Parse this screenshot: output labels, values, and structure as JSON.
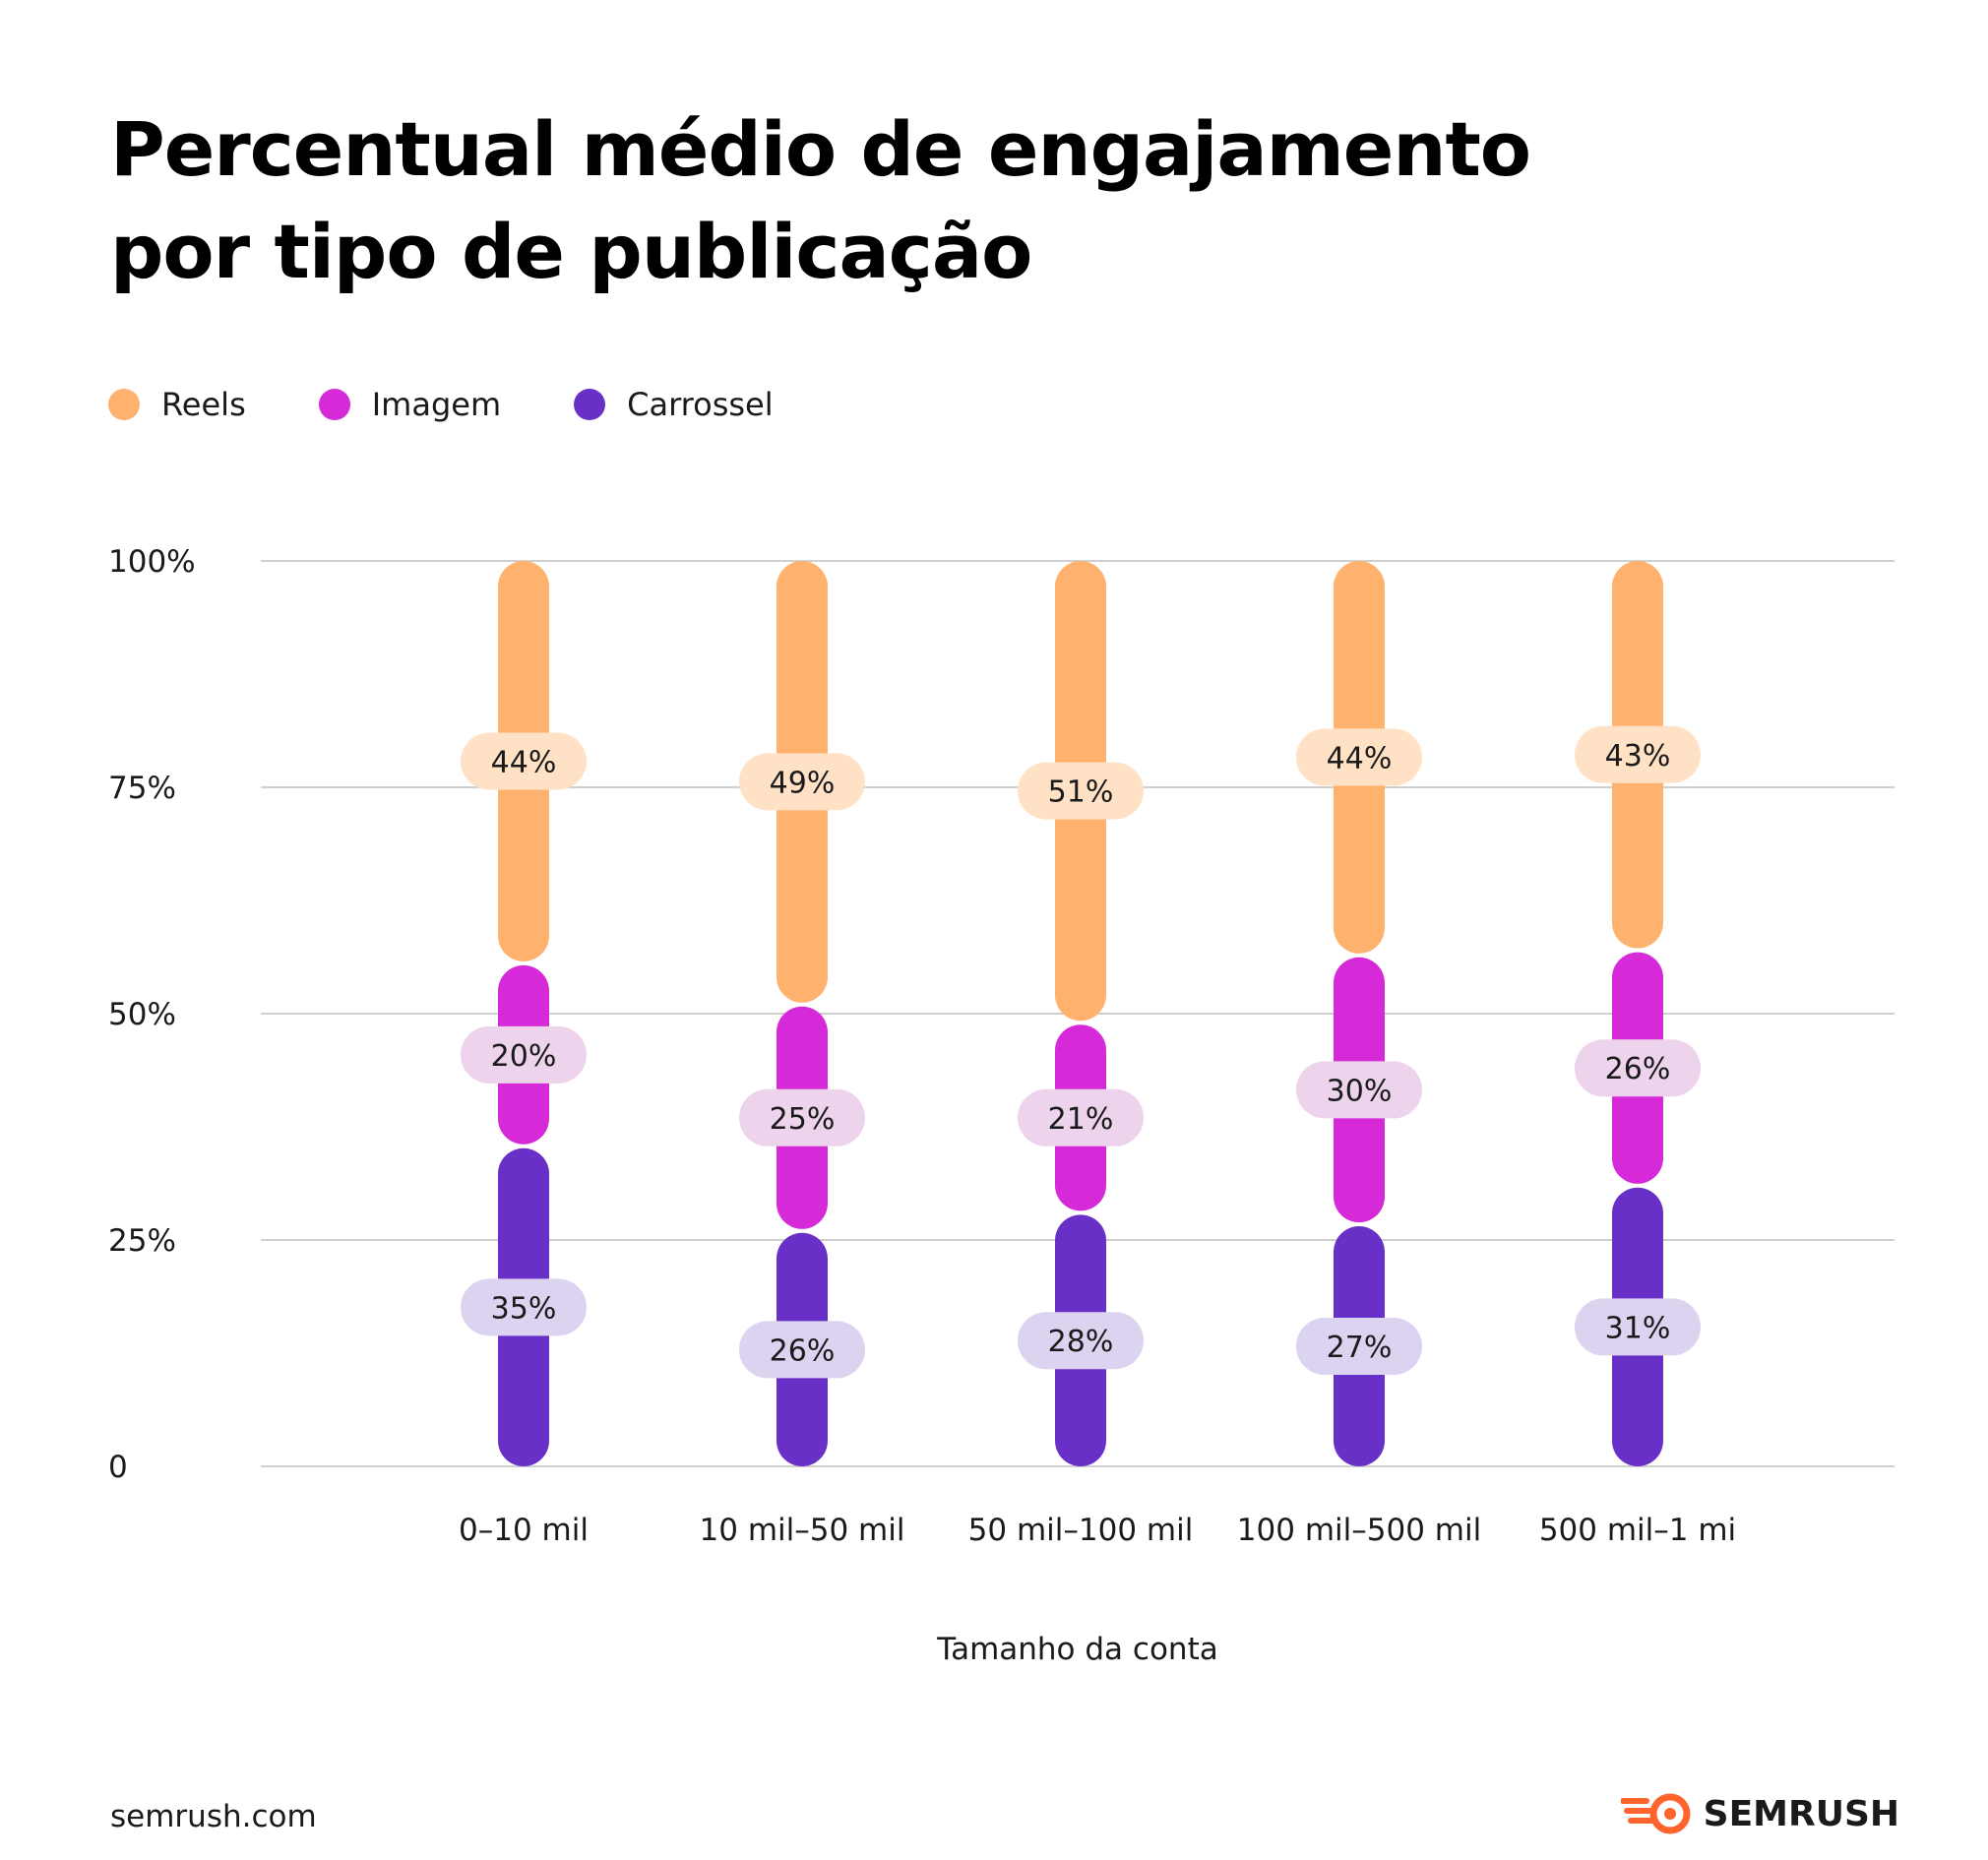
{
  "title_lines": [
    "Percentual médio de engajamento",
    "por tipo de publicação"
  ],
  "legend": [
    {
      "label": "Reels",
      "color": "#FFB26E"
    },
    {
      "label": "Imagem",
      "color": "#D62AD9"
    },
    {
      "label": "Carrossel",
      "color": "#6930C8"
    }
  ],
  "footer": {
    "url": "semrush.com",
    "brand": "SEMRUSH",
    "brand_color": "#FF642D"
  },
  "chart_data": {
    "type": "bar",
    "stacked": true,
    "categories": [
      "0–10 mil",
      "10 mil–50 mil",
      "50 mil–100 mil",
      "100 mil–500 mil",
      "500 mil–1 mi"
    ],
    "series": [
      {
        "name": "Carrossel",
        "values": [
          35,
          26,
          28,
          27,
          31
        ],
        "labels": [
          "35%",
          "26%",
          "28%",
          "27%",
          "31%"
        ],
        "color": "#6930C8",
        "label_bg": "#DCD3F0"
      },
      {
        "name": "Imagem",
        "values": [
          20,
          25,
          21,
          30,
          26
        ],
        "labels": [
          "20%",
          "25%",
          "21%",
          "30%",
          "26%"
        ],
        "color": "#D62AD9",
        "label_bg": "#EDD3EC"
      },
      {
        "name": "Reels",
        "values": [
          44,
          49,
          51,
          44,
          43
        ],
        "labels": [
          "44%",
          "49%",
          "51%",
          "44%",
          "43%"
        ],
        "color": "#FFB26E",
        "label_bg": "#FFE2C6"
      }
    ],
    "yticks": [
      "0",
      "25%",
      "50%",
      "75%",
      "100%"
    ],
    "ytick_values": [
      0,
      25,
      50,
      75,
      100
    ],
    "ylim": [
      0,
      100
    ],
    "xlabel": "Tamanho da conta",
    "ylabel": "",
    "grid": true,
    "legend_position": "top-left"
  }
}
